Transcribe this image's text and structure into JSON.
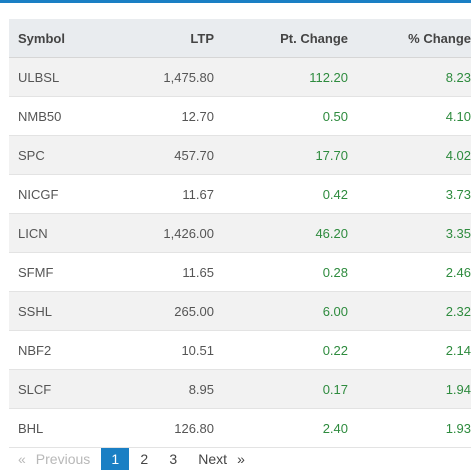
{
  "columns": {
    "symbol": "Symbol",
    "ltp": "LTP",
    "pt_change": "Pt. Change",
    "pct_change": "% Change"
  },
  "rows": [
    {
      "symbol": "ULBSL",
      "ltp": "1,475.80",
      "pt_change": "112.20",
      "pct_change": "8.23"
    },
    {
      "symbol": "NMB50",
      "ltp": "12.70",
      "pt_change": "0.50",
      "pct_change": "4.10"
    },
    {
      "symbol": "SPC",
      "ltp": "457.70",
      "pt_change": "17.70",
      "pct_change": "4.02"
    },
    {
      "symbol": "NICGF",
      "ltp": "11.67",
      "pt_change": "0.42",
      "pct_change": "3.73"
    },
    {
      "symbol": "LICN",
      "ltp": "1,426.00",
      "pt_change": "46.20",
      "pct_change": "3.35"
    },
    {
      "symbol": "SFMF",
      "ltp": "11.65",
      "pt_change": "0.28",
      "pct_change": "2.46"
    },
    {
      "symbol": "SSHL",
      "ltp": "265.00",
      "pt_change": "6.00",
      "pct_change": "2.32"
    },
    {
      "symbol": "NBF2",
      "ltp": "10.51",
      "pt_change": "0.22",
      "pct_change": "2.14"
    },
    {
      "symbol": "SLCF",
      "ltp": "8.95",
      "pt_change": "0.17",
      "pct_change": "1.94"
    },
    {
      "symbol": "BHL",
      "ltp": "126.80",
      "pt_change": "2.40",
      "pct_change": "1.93"
    }
  ],
  "pagination": {
    "prev_arrow": "«",
    "previous_label": "Previous",
    "pages": [
      "1",
      "2",
      "3"
    ],
    "current_page": "1",
    "next_label": "Next",
    "next_arrow": "»"
  },
  "colors": {
    "accent": "#1a7fc4",
    "positive": "#2e8b3e",
    "header_bg": "#e9ecef",
    "stripe_bg": "#f2f2f2"
  }
}
